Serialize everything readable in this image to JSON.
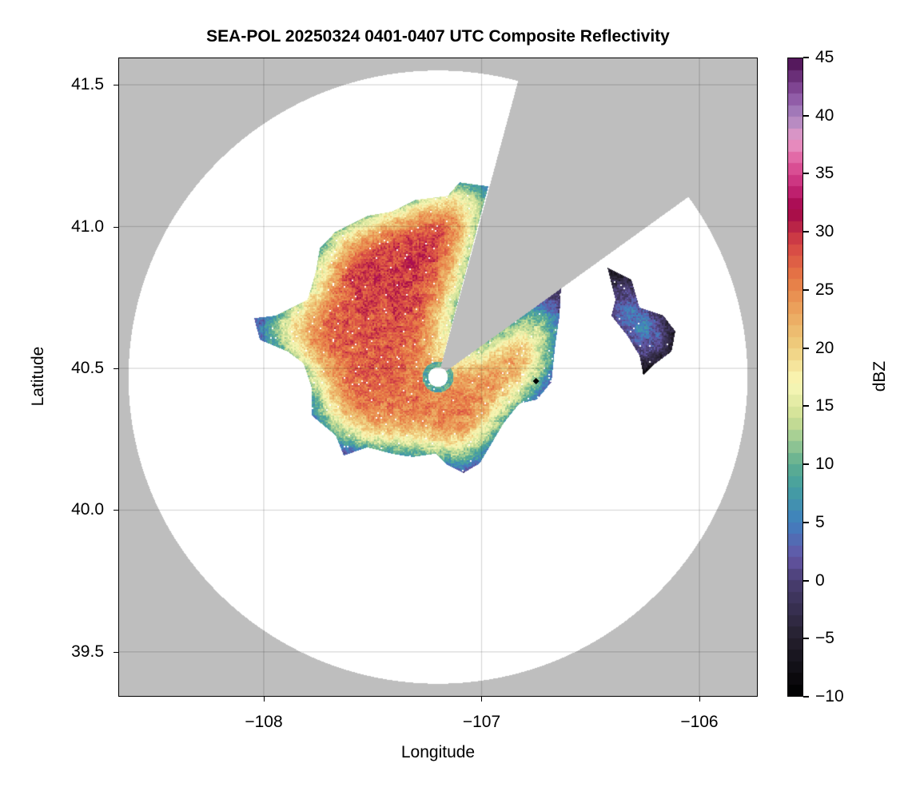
{
  "chart_data": {
    "type": "heatmap",
    "title": "SEA-POL 20250324 0401-0407 UTC Composite Reflectivity",
    "xlabel": "Longitude",
    "ylabel": "Latitude",
    "xlim": [
      -108.668,
      -105.732
    ],
    "ylim": [
      39.342,
      41.596
    ],
    "xticks": [
      -108,
      -107,
      -106
    ],
    "xtick_labels": [
      "−108",
      "−107",
      "−106"
    ],
    "yticks": [
      39.5,
      40.0,
      40.5,
      41.0,
      41.5
    ],
    "ytick_labels": [
      "39.5",
      "40.0",
      "40.5",
      "41.0",
      "41.5"
    ],
    "grid": true,
    "colorbar": {
      "label": "dBZ",
      "range": [
        -10,
        45
      ],
      "step": 1,
      "ticks": [
        -10,
        -5,
        0,
        5,
        10,
        15,
        20,
        25,
        30,
        35,
        40,
        45
      ],
      "tick_labels": [
        "−10",
        "−5",
        "0",
        "5",
        "10",
        "15",
        "20",
        "25",
        "30",
        "35",
        "40",
        "45"
      ],
      "colormap": [
        [
          -10,
          "#000000"
        ],
        [
          -5,
          "#25202e"
        ],
        [
          0,
          "#4a3f72"
        ],
        [
          2,
          "#6556a6"
        ],
        [
          5,
          "#4080c0"
        ],
        [
          8,
          "#45a0a0"
        ],
        [
          10,
          "#5fae90"
        ],
        [
          12,
          "#9ccb94"
        ],
        [
          14,
          "#cfe095"
        ],
        [
          17,
          "#fbf9b8"
        ],
        [
          20,
          "#efd080"
        ],
        [
          23,
          "#eca860"
        ],
        [
          26,
          "#e77a45"
        ],
        [
          29,
          "#d64545"
        ],
        [
          31,
          "#b01a48"
        ],
        [
          32,
          "#a3054a"
        ],
        [
          34,
          "#c72a7a"
        ],
        [
          36,
          "#e05a9c"
        ],
        [
          38,
          "#e89ac8"
        ],
        [
          40,
          "#a986c0"
        ],
        [
          42,
          "#8a50a0"
        ],
        [
          45,
          "#4b0f50"
        ]
      ]
    },
    "radar": {
      "lon": -107.2,
      "lat": 40.469,
      "range_km": 120,
      "inner_hole_km": 3.8,
      "blocked_azimuth_deg": [
        15,
        54
      ]
    },
    "marker": {
      "lon": -106.75,
      "lat": 40.455,
      "symbol": "diamond"
    },
    "echo_outline": [
      [
        -106.969,
        41.142
      ],
      [
        -107.101,
        41.156
      ],
      [
        -107.156,
        41.108
      ],
      [
        -107.303,
        41.094
      ],
      [
        -107.413,
        41.052
      ],
      [
        -107.523,
        41.038
      ],
      [
        -107.67,
        40.982
      ],
      [
        -107.743,
        40.925
      ],
      [
        -107.761,
        40.841
      ],
      [
        -107.798,
        40.742
      ],
      [
        -107.945,
        40.686
      ],
      [
        -108.044,
        40.677
      ],
      [
        -108.018,
        40.601
      ],
      [
        -107.89,
        40.559
      ],
      [
        -107.817,
        40.517
      ],
      [
        -107.78,
        40.432
      ],
      [
        -107.78,
        40.334
      ],
      [
        -107.67,
        40.263
      ],
      [
        -107.633,
        40.193
      ],
      [
        -107.523,
        40.221
      ],
      [
        -107.413,
        40.199
      ],
      [
        -107.321,
        40.187
      ],
      [
        -107.211,
        40.199
      ],
      [
        -107.156,
        40.159
      ],
      [
        -107.083,
        40.131
      ],
      [
        -107.009,
        40.165
      ],
      [
        -106.954,
        40.235
      ],
      [
        -106.899,
        40.306
      ],
      [
        -106.826,
        40.376
      ],
      [
        -106.745,
        40.39
      ],
      [
        -106.679,
        40.452
      ],
      [
        -106.661,
        40.587
      ],
      [
        -106.642,
        40.686
      ],
      [
        -106.635,
        40.79
      ],
      [
        -107.2,
        40.469
      ]
    ],
    "echo_outline_east": [
      [
        -106.422,
        40.855
      ],
      [
        -106.312,
        40.813
      ],
      [
        -106.275,
        40.714
      ],
      [
        -106.165,
        40.686
      ],
      [
        -106.11,
        40.63
      ],
      [
        -106.128,
        40.559
      ],
      [
        -106.202,
        40.517
      ],
      [
        -106.257,
        40.475
      ],
      [
        -106.275,
        40.545
      ],
      [
        -106.33,
        40.615
      ],
      [
        -106.404,
        40.686
      ],
      [
        -106.385,
        40.742
      ]
    ],
    "background_color": "#bebebe"
  }
}
